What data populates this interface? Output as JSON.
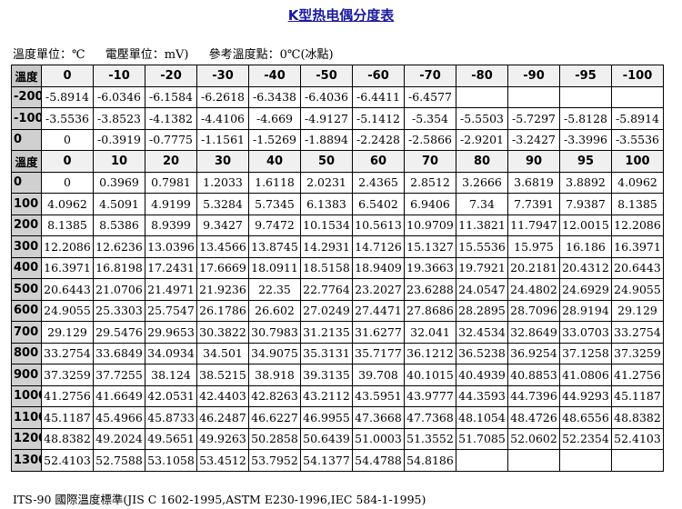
{
  "title": "K型热电偶分度表",
  "units": {
    "temp_unit": "溫度單位：℃",
    "emf_unit": "電壓單位：mV)",
    "reference": "參考溫度點：0℃(冰點)"
  },
  "neg_section": {
    "corner": "溫度",
    "headers": [
      "0",
      "-10",
      "-20",
      "-30",
      "-40",
      "-50",
      "-60",
      "-70",
      "-80",
      "-90",
      "-95",
      "-100"
    ],
    "rows": [
      {
        "temp": "-200",
        "values": [
          "-5.8914",
          "-6.0346",
          "-6.1584",
          "-6.2618",
          "-6.3438",
          "-6.4036",
          "-6.4411",
          "-6.4577",
          "",
          "",
          "",
          ""
        ]
      },
      {
        "temp": "-100",
        "values": [
          "-3.5536",
          "-3.8523",
          "-4.1382",
          "-4.4106",
          "-4.669",
          "-4.9127",
          "-5.1412",
          "-5.354",
          "-5.5503",
          "-5.7297",
          "-5.8128",
          "-5.8914"
        ]
      },
      {
        "temp": "0",
        "values": [
          "0",
          "-0.3919",
          "-0.7775",
          "-1.1561",
          "-1.5269",
          "-1.8894",
          "-2.2428",
          "-2.5866",
          "-2.9201",
          "-3.2427",
          "-3.3996",
          "-3.5536"
        ]
      }
    ]
  },
  "pos_section": {
    "corner": "溫度",
    "headers": [
      "0",
      "10",
      "20",
      "30",
      "40",
      "50",
      "60",
      "70",
      "80",
      "90",
      "95",
      "100"
    ],
    "rows": [
      {
        "temp": "0",
        "values": [
          "0",
          "0.3969",
          "0.7981",
          "1.2033",
          "1.6118",
          "2.0231",
          "2.4365",
          "2.8512",
          "3.2666",
          "3.6819",
          "3.8892",
          "4.0962"
        ]
      },
      {
        "temp": "100",
        "values": [
          "4.0962",
          "4.5091",
          "4.9199",
          "5.3284",
          "5.7345",
          "6.1383",
          "6.5402",
          "6.9406",
          "7.34",
          "7.7391",
          "7.9387",
          "8.1385"
        ]
      },
      {
        "temp": "200",
        "values": [
          "8.1385",
          "8.5386",
          "8.9399",
          "9.3427",
          "9.7472",
          "10.1534",
          "10.5613",
          "10.9709",
          "11.3821",
          "11.7947",
          "12.0015",
          "12.2086"
        ]
      },
      {
        "temp": "300",
        "values": [
          "12.2086",
          "12.6236",
          "13.0396",
          "13.4566",
          "13.8745",
          "14.2931",
          "14.7126",
          "15.1327",
          "15.5536",
          "15.975",
          "16.186",
          "16.3971"
        ]
      },
      {
        "temp": "400",
        "values": [
          "16.3971",
          "16.8198",
          "17.2431",
          "17.6669",
          "18.0911",
          "18.5158",
          "18.9409",
          "19.3663",
          "19.7921",
          "20.2181",
          "20.4312",
          "20.6443"
        ]
      },
      {
        "temp": "500",
        "values": [
          "20.6443",
          "21.0706",
          "21.4971",
          "21.9236",
          "22.35",
          "22.7764",
          "23.2027",
          "23.6288",
          "24.0547",
          "24.4802",
          "24.6929",
          "24.9055"
        ]
      },
      {
        "temp": "600",
        "values": [
          "24.9055",
          "25.3303",
          "25.7547",
          "26.1786",
          "26.602",
          "27.0249",
          "27.4471",
          "27.8686",
          "28.2895",
          "28.7096",
          "28.9194",
          "29.129"
        ]
      },
      {
        "temp": "700",
        "values": [
          "29.129",
          "29.5476",
          "29.9653",
          "30.3822",
          "30.7983",
          "31.2135",
          "31.6277",
          "32.041",
          "32.4534",
          "32.8649",
          "33.0703",
          "33.2754"
        ]
      },
      {
        "temp": "800",
        "values": [
          "33.2754",
          "33.6849",
          "34.0934",
          "34.501",
          "34.9075",
          "35.3131",
          "35.7177",
          "36.1212",
          "36.5238",
          "36.9254",
          "37.1258",
          "37.3259"
        ]
      },
      {
        "temp": "900",
        "values": [
          "37.3259",
          "37.7255",
          "38.124",
          "38.5215",
          "38.918",
          "39.3135",
          "39.708",
          "40.1015",
          "40.4939",
          "40.8853",
          "41.0806",
          "41.2756"
        ]
      },
      {
        "temp": "1000",
        "values": [
          "41.2756",
          "41.6649",
          "42.0531",
          "42.4403",
          "42.8263",
          "43.2112",
          "43.5951",
          "43.9777",
          "44.3593",
          "44.7396",
          "44.9293",
          "45.1187"
        ]
      },
      {
        "temp": "1100",
        "values": [
          "45.1187",
          "45.4966",
          "45.8733",
          "46.2487",
          "46.6227",
          "46.9955",
          "47.3668",
          "47.7368",
          "48.1054",
          "48.4726",
          "48.6556",
          "48.8382"
        ]
      },
      {
        "temp": "1200",
        "values": [
          "48.8382",
          "49.2024",
          "49.5651",
          "49.9263",
          "50.2858",
          "50.6439",
          "51.0003",
          "51.3552",
          "51.7085",
          "52.0602",
          "52.2354",
          "52.4103"
        ]
      },
      {
        "temp": "1300",
        "values": [
          "52.4103",
          "52.7588",
          "53.1058",
          "53.4512",
          "53.7952",
          "54.1377",
          "54.4788",
          "54.8186",
          "",
          "",
          "",
          ""
        ]
      }
    ]
  },
  "footer": "ITS-90 國際溫度標準(JIS C 1602-1995,ASTM E230-1996,IEC 584-1-1995)"
}
